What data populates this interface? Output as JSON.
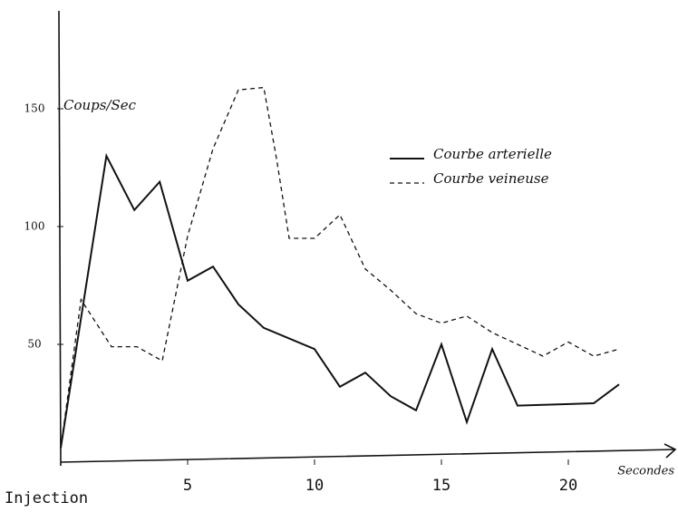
{
  "chart_data": {
    "type": "line",
    "y_label": "Coups/Sec",
    "x_label": "Secondes",
    "origin_label": "Injection",
    "xlim": [
      0,
      24
    ],
    "ylim": [
      0,
      180
    ],
    "xticks": [
      5,
      10,
      15,
      20
    ],
    "yticks": [
      50,
      100,
      150
    ],
    "series": [
      {
        "name": "Courbe arterielle",
        "color": "#111111",
        "dash": false,
        "x": [
          0,
          1.8,
          2.9,
          3.9,
          5,
          6,
          7,
          8,
          10,
          11,
          12,
          13,
          14,
          15,
          16,
          17,
          18,
          21,
          22
        ],
        "values": [
          6,
          130,
          107,
          119,
          77,
          83,
          67,
          57,
          48,
          32,
          38,
          28,
          22,
          50,
          17,
          48,
          24,
          25,
          33
        ]
      },
      {
        "name": "Courbe veineuse",
        "color": "#111111",
        "dash": true,
        "x": [
          0,
          0.8,
          2,
          3,
          4,
          5,
          6,
          7,
          8,
          8.5,
          9,
          10,
          11,
          12,
          13,
          14,
          15,
          16,
          17,
          18,
          19,
          20,
          21,
          22
        ],
        "values": [
          6,
          69,
          49,
          49,
          43,
          96,
          133,
          158,
          159,
          129,
          95,
          95,
          105,
          82,
          73,
          63,
          59,
          62,
          55,
          50,
          45,
          51,
          45,
          48
        ]
      }
    ]
  }
}
